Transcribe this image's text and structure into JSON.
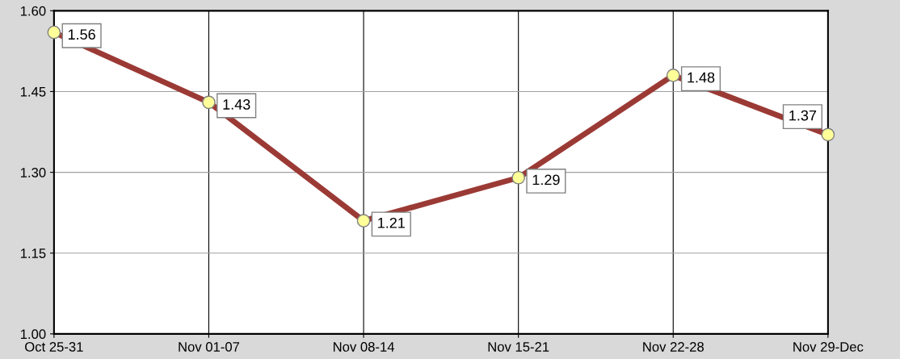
{
  "chart_data": {
    "type": "line",
    "categories": [
      "Oct 25-31",
      "Nov 01-07",
      "Nov 08-14",
      "Nov 15-21",
      "Nov 22-28",
      "Nov 29-Dec"
    ],
    "series": [
      {
        "color": "#9b3a35",
        "values": [
          1.56,
          1.43,
          1.21,
          1.29,
          1.48,
          1.37
        ]
      }
    ],
    "ylim": [
      1.0,
      1.6
    ],
    "yticks": [
      {
        "value": 1.0,
        "label": "1.00"
      },
      {
        "value": 1.15,
        "label": "1.15"
      },
      {
        "value": 1.3,
        "label": "1.30"
      },
      {
        "value": 1.45,
        "label": "1.45"
      },
      {
        "value": 1.6,
        "label": "1.60"
      }
    ],
    "grid": true,
    "marker": "circle",
    "line_style": "solid",
    "data_labels": true,
    "legend": false
  }
}
